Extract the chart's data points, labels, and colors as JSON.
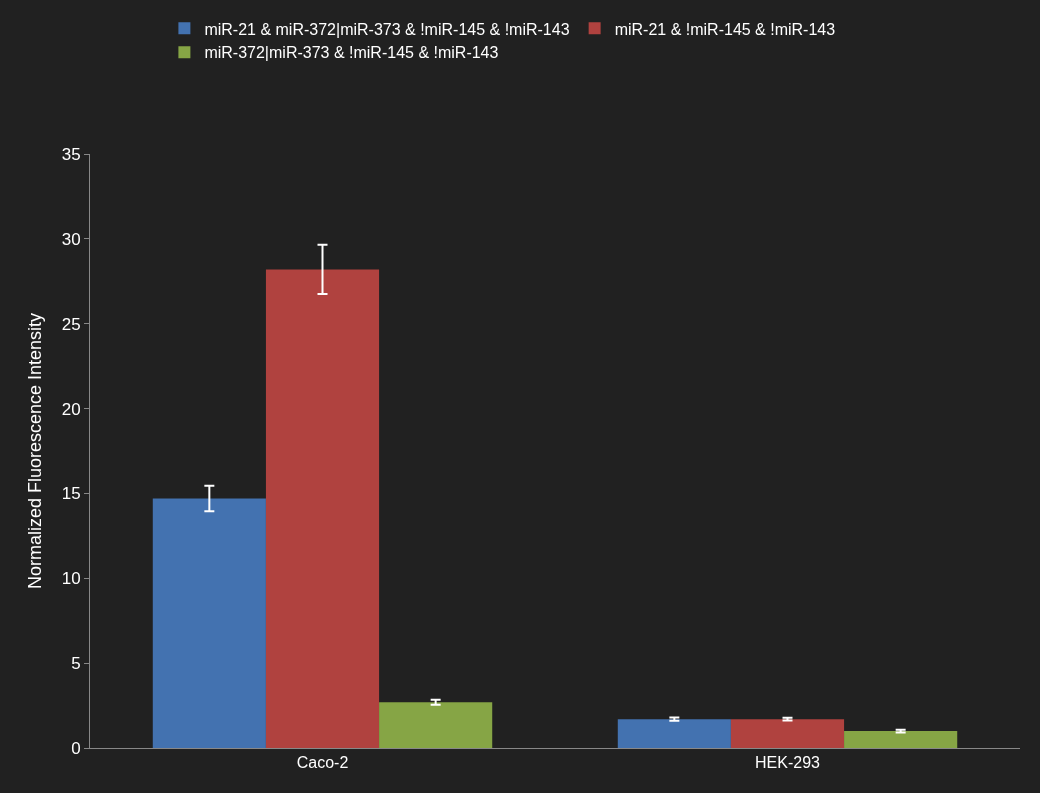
{
  "chart_data": {
    "type": "bar",
    "ylabel": "Normalized Fluorescence Intensity",
    "categories": [
      "Caco-2",
      "HEK-293"
    ],
    "series": [
      {
        "name": "miR-21 & miR-372|miR-373 & !miR-145 & !miR-143",
        "color": "#4372b0",
        "values": [
          14.7,
          1.7
        ],
        "errors": [
          0.75,
          0.1
        ]
      },
      {
        "name": "miR-21 & !miR-145 & !miR-143",
        "color": "#b0423f",
        "values": [
          28.2,
          1.7
        ],
        "errors": [
          1.45,
          0.08
        ]
      },
      {
        "name": "miR-372|miR-373 & !miR-145 & !miR-143",
        "color": "#86a545",
        "values": [
          2.7,
          1.0
        ],
        "errors": [
          0.15,
          0.08
        ]
      }
    ],
    "ylim": [
      0,
      35
    ],
    "yticks": [
      0,
      5,
      10,
      15,
      20,
      25,
      30,
      35
    ],
    "grid": false,
    "legend": "top left"
  }
}
